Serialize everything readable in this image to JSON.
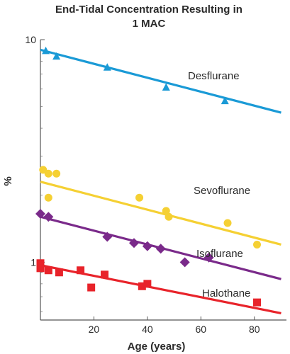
{
  "chart_data": {
    "type": "scatter",
    "title_lines": [
      "End-Tidal Concentration Resulting in",
      "1 MAC"
    ],
    "xlabel": "Age (years)",
    "ylabel": "%",
    "xlim": [
      0,
      92
    ],
    "ylim": [
      0.55,
      10
    ],
    "yscale": "log",
    "x_ticks": [
      20,
      40,
      60,
      80
    ],
    "x_tick_labels": [
      "20",
      "40",
      "60",
      "80"
    ],
    "y_ticks": [
      1,
      10
    ],
    "y_tick_labels": [
      "1",
      "10"
    ],
    "grid": false,
    "legend": "none",
    "series": [
      {
        "name": "Desflurane",
        "color": "#1a9ad6",
        "marker": "triangle",
        "points": [
          [
            2,
            8.9
          ],
          [
            6,
            8.4
          ],
          [
            25,
            7.5
          ],
          [
            47,
            6.1
          ],
          [
            69,
            5.3
          ]
        ],
        "fit": [
          [
            0,
            9.0
          ],
          [
            90,
            4.7
          ]
        ]
      },
      {
        "name": "Sevoflurane",
        "color": "#f5d033",
        "marker": "circle",
        "points": [
          [
            1,
            2.6
          ],
          [
            3,
            2.5
          ],
          [
            6,
            2.5
          ],
          [
            3,
            1.95
          ],
          [
            37,
            1.95
          ],
          [
            47,
            1.7
          ],
          [
            48,
            1.6
          ],
          [
            70,
            1.5
          ],
          [
            81,
            1.2
          ]
        ],
        "fit": [
          [
            0,
            2.3
          ],
          [
            90,
            1.2
          ]
        ]
      },
      {
        "name": "Isoflurane",
        "color": "#7a2a8a",
        "marker": "diamond",
        "points": [
          [
            0,
            1.65
          ],
          [
            3,
            1.6
          ],
          [
            25,
            1.3
          ],
          [
            35,
            1.22
          ],
          [
            40,
            1.18
          ],
          [
            45,
            1.15
          ],
          [
            54,
            1.0
          ],
          [
            63,
            1.05
          ]
        ],
        "fit": [
          [
            0,
            1.6
          ],
          [
            90,
            0.84
          ]
        ]
      },
      {
        "name": "Halothane",
        "color": "#e8232a",
        "marker": "square",
        "points": [
          [
            0,
            0.99
          ],
          [
            0,
            0.94
          ],
          [
            3,
            0.92
          ],
          [
            7,
            0.9
          ],
          [
            15,
            0.92
          ],
          [
            24,
            0.88
          ],
          [
            19,
            0.77
          ],
          [
            38,
            0.78
          ],
          [
            40,
            0.8
          ],
          [
            81,
            0.66
          ]
        ],
        "fit": [
          [
            0,
            0.97
          ],
          [
            90,
            0.59
          ]
        ]
      }
    ]
  }
}
